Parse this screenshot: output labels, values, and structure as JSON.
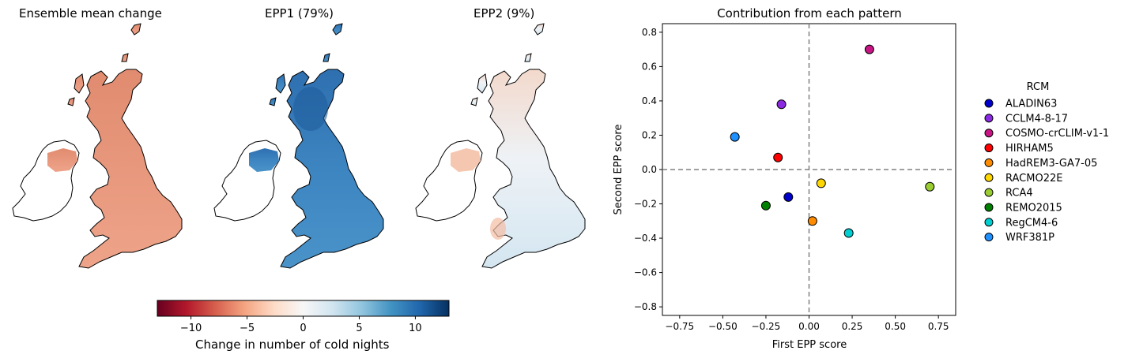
{
  "maps": [
    {
      "title": "Ensemble mean change",
      "scheme": "mean"
    },
    {
      "title": "EPP1 (79%)",
      "scheme": "epp1"
    },
    {
      "title": "EPP2 (9%)",
      "scheme": "epp2"
    }
  ],
  "colorbar": {
    "label": "Change in number of cold nights",
    "min": -13,
    "max": 13,
    "ticks": [
      -10,
      -5,
      0,
      5,
      10
    ],
    "tick_labels": [
      "−10",
      "−5",
      "0",
      "5",
      "10"
    ],
    "colormap": "RdBu"
  },
  "chart_data": {
    "type": "scatter",
    "title": "Contribution from each pattern",
    "xlabel": "First EPP score",
    "ylabel": "Second EPP score",
    "xlim": [
      -0.85,
      0.85
    ],
    "ylim": [
      -0.85,
      0.85
    ],
    "x_ticks": [
      -0.75,
      -0.5,
      -0.25,
      0.0,
      0.25,
      0.5,
      0.75
    ],
    "x_tick_labels": [
      "−0.75",
      "−0.50",
      "−0.25",
      "0.00",
      "0.25",
      "0.50",
      "0.75"
    ],
    "y_ticks": [
      -0.8,
      -0.6,
      -0.4,
      -0.2,
      0.0,
      0.2,
      0.4,
      0.6,
      0.8
    ],
    "y_tick_labels": [
      "−0.8",
      "−0.6",
      "−0.4",
      "−0.2",
      "0.0",
      "0.2",
      "0.4",
      "0.6",
      "0.8"
    ],
    "grid": false,
    "reference_lines": {
      "x": 0,
      "y": 0,
      "style": "dashed"
    },
    "legend_title": "RCM",
    "legend_position": "right-outside",
    "series": [
      {
        "name": "ALADIN63",
        "x": -0.12,
        "y": -0.16,
        "color": "#0000cd"
      },
      {
        "name": "CCLM4-8-17",
        "x": -0.16,
        "y": 0.38,
        "color": "#8a2be2"
      },
      {
        "name": "COSMO-crCLIM-v1-1",
        "x": 0.35,
        "y": 0.7,
        "color": "#c71585"
      },
      {
        "name": "HIRHAM5",
        "x": -0.18,
        "y": 0.07,
        "color": "#ff0000"
      },
      {
        "name": "HadREM3-GA7-05",
        "x": 0.02,
        "y": -0.3,
        "color": "#ff8c00"
      },
      {
        "name": "RACMO22E",
        "x": 0.07,
        "y": -0.08,
        "color": "#ffd700"
      },
      {
        "name": "RCA4",
        "x": 0.7,
        "y": -0.1,
        "color": "#9acd32"
      },
      {
        "name": "REMO2015",
        "x": -0.25,
        "y": -0.21,
        "color": "#008000"
      },
      {
        "name": "RegCM4-6",
        "x": 0.23,
        "y": -0.37,
        "color": "#00ced1"
      },
      {
        "name": "WRF381P",
        "x": -0.43,
        "y": 0.19,
        "color": "#1e90ff"
      }
    ]
  }
}
